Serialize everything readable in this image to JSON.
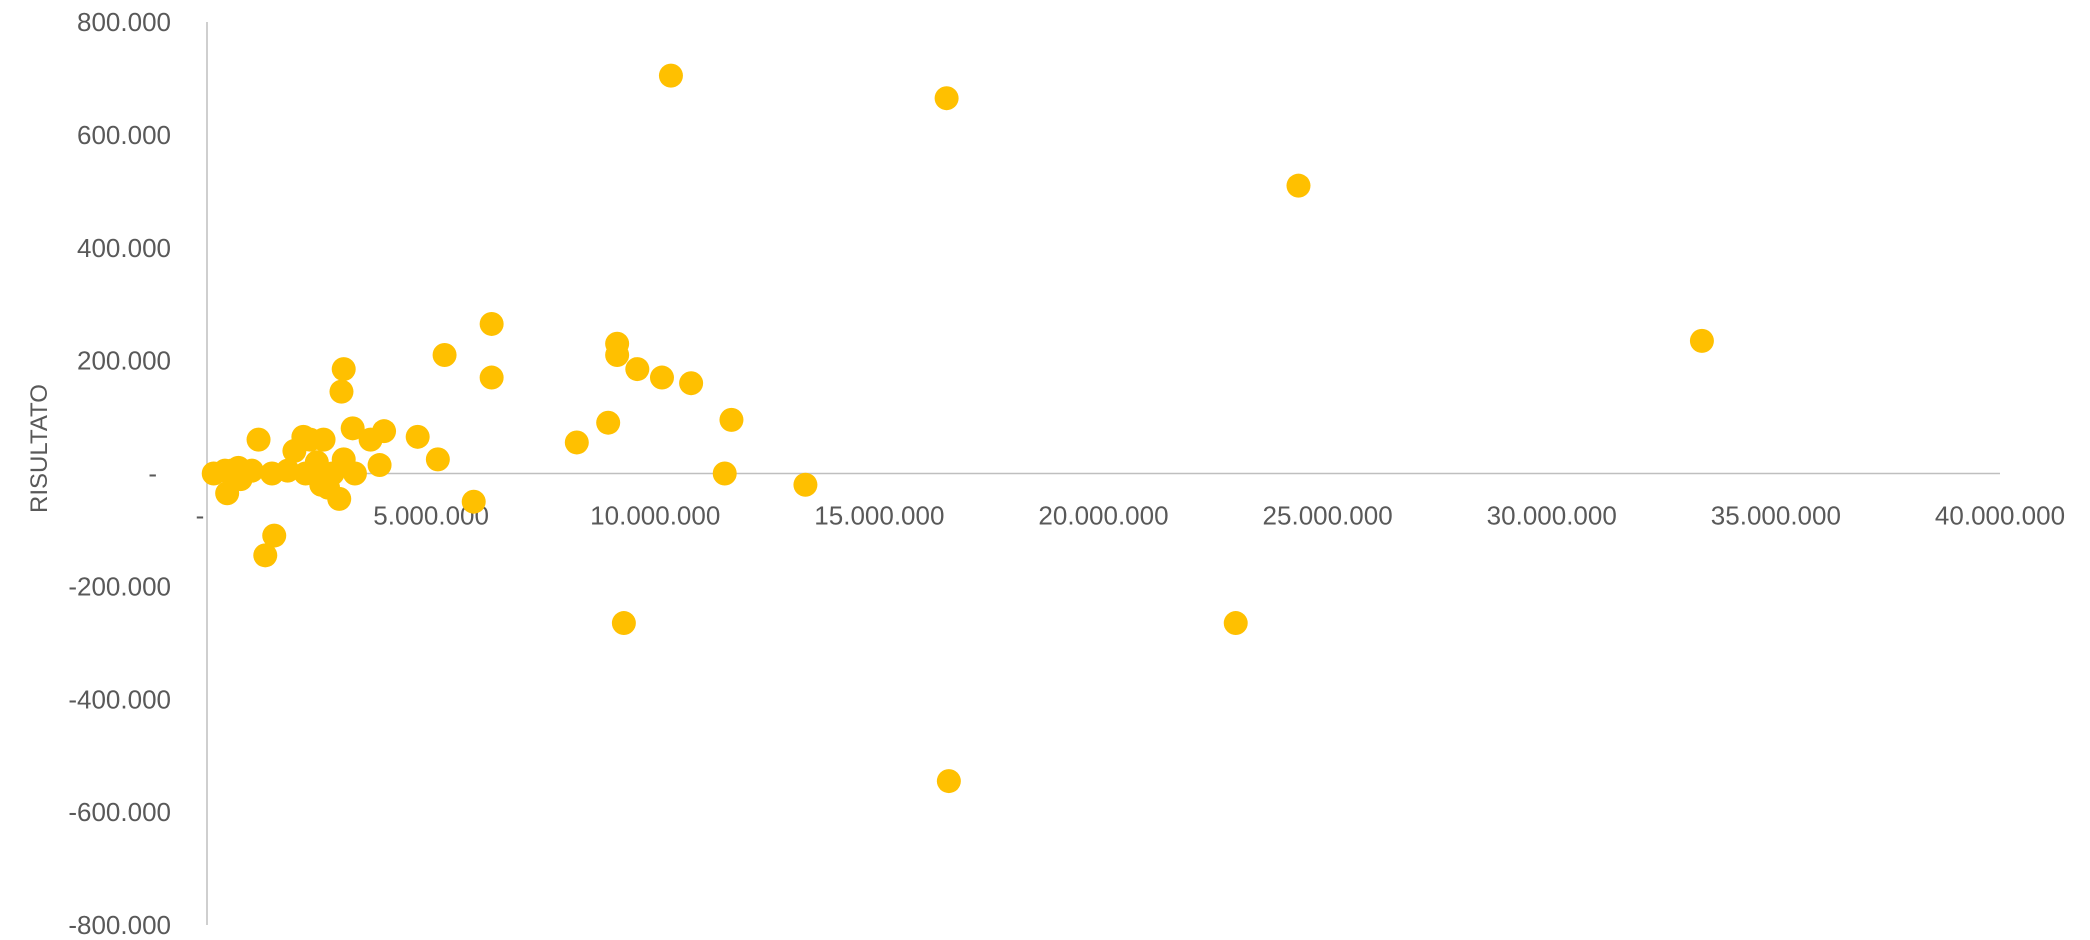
{
  "chart_data": {
    "type": "scatter",
    "title": "",
    "xlabel": "",
    "ylabel": "RISULTATO",
    "xlim": [
      0,
      40000000
    ],
    "ylim": [
      -800000,
      800000
    ],
    "x_ticks": [
      {
        "value": 0,
        "label": "-"
      },
      {
        "value": 5000000,
        "label": "5.000.000"
      },
      {
        "value": 10000000,
        "label": "10.000.000"
      },
      {
        "value": 15000000,
        "label": "15.000.000"
      },
      {
        "value": 20000000,
        "label": "20.000.000"
      },
      {
        "value": 25000000,
        "label": "25.000.000"
      },
      {
        "value": 30000000,
        "label": "30.000.000"
      },
      {
        "value": 35000000,
        "label": "35.000.000"
      },
      {
        "value": 40000000,
        "label": "40.000.000"
      }
    ],
    "y_ticks": [
      {
        "value": 800000,
        "label": "800.000"
      },
      {
        "value": 600000,
        "label": "600.000"
      },
      {
        "value": 400000,
        "label": "400.000"
      },
      {
        "value": 200000,
        "label": "200.000"
      },
      {
        "value": 0,
        "label": "-"
      },
      {
        "value": -200000,
        "label": "-200.000"
      },
      {
        "value": -400000,
        "label": "-400.000"
      },
      {
        "value": -600000,
        "label": "-600.000"
      },
      {
        "value": -800000,
        "label": "-800.000"
      }
    ],
    "grid": false,
    "marker_color": "#FFC000",
    "axis_color": "#BFBFBF",
    "series": [
      {
        "points": [
          [
            150000,
            0
          ],
          [
            400000,
            5000
          ],
          [
            450000,
            -35000
          ],
          [
            550000,
            5000
          ],
          [
            700000,
            10000
          ],
          [
            750000,
            -10000
          ],
          [
            1000000,
            5000
          ],
          [
            1150000,
            60000
          ],
          [
            1300000,
            -145000
          ],
          [
            1450000,
            0
          ],
          [
            1500000,
            -110000
          ],
          [
            1800000,
            5000
          ],
          [
            1950000,
            40000
          ],
          [
            2150000,
            65000
          ],
          [
            2200000,
            0
          ],
          [
            2300000,
            60000
          ],
          [
            2450000,
            20000
          ],
          [
            2550000,
            -20000
          ],
          [
            2600000,
            60000
          ],
          [
            2700000,
            -25000
          ],
          [
            2800000,
            0
          ],
          [
            2950000,
            -45000
          ],
          [
            3000000,
            145000
          ],
          [
            3050000,
            185000
          ],
          [
            3050000,
            25000
          ],
          [
            3250000,
            80000
          ],
          [
            3300000,
            0
          ],
          [
            3650000,
            60000
          ],
          [
            3850000,
            15000
          ],
          [
            3950000,
            75000
          ],
          [
            4700000,
            65000
          ],
          [
            5150000,
            25000
          ],
          [
            5300000,
            210000
          ],
          [
            5950000,
            -50000
          ],
          [
            6350000,
            265000
          ],
          [
            6350000,
            170000
          ],
          [
            8250000,
            55000
          ],
          [
            8950000,
            90000
          ],
          [
            9150000,
            230000
          ],
          [
            9150000,
            210000
          ],
          [
            9300000,
            -265000
          ],
          [
            9600000,
            185000
          ],
          [
            10150000,
            170000
          ],
          [
            10350000,
            705000
          ],
          [
            10800000,
            160000
          ],
          [
            11550000,
            0
          ],
          [
            11700000,
            95000
          ],
          [
            13350000,
            -20000
          ],
          [
            16500000,
            665000
          ],
          [
            16550000,
            -545000
          ],
          [
            22950000,
            -265000
          ],
          [
            24350000,
            510000
          ],
          [
            33350000,
            235000
          ]
        ]
      }
    ]
  }
}
